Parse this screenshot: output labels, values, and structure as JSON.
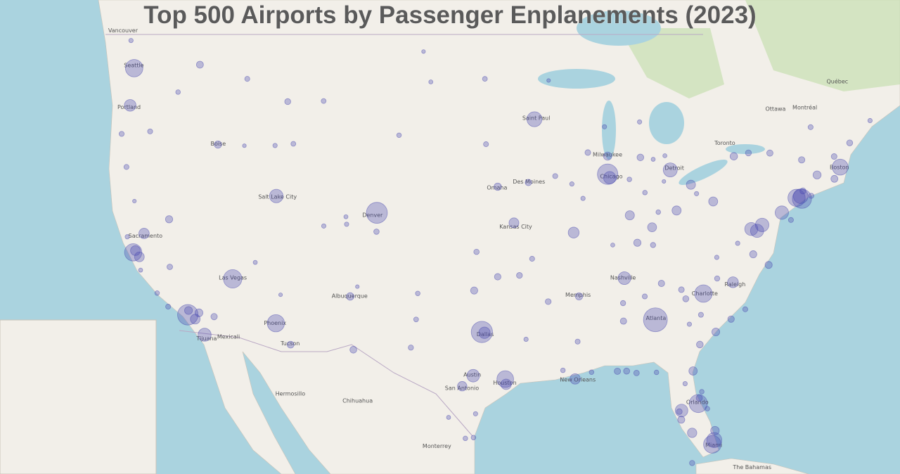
{
  "title": "Top 500 Airports by Passenger Enplanements (2023)",
  "map": {
    "type": "bubble-map",
    "bubble_color": "#4a4ab0",
    "points": [
      {
        "lon": -84.43,
        "lat": 33.64,
        "value": 50.9
      },
      {
        "lon": -97.04,
        "lat": 32.9,
        "value": 39.2
      },
      {
        "lon": -104.67,
        "lat": 39.86,
        "value": 37.9
      },
      {
        "lon": -87.9,
        "lat": 41.98,
        "value": 35.8
      },
      {
        "lon": -118.41,
        "lat": 33.94,
        "value": 36.0
      },
      {
        "lon": -73.78,
        "lat": 40.64,
        "value": 30.8
      },
      {
        "lon": -115.15,
        "lat": 36.08,
        "value": 28.0
      },
      {
        "lon": -81.31,
        "lat": 28.43,
        "value": 27.0
      },
      {
        "lon": -80.29,
        "lat": 25.79,
        "value": 25.2
      },
      {
        "lon": -80.94,
        "lat": 35.21,
        "value": 24.7
      },
      {
        "lon": -122.31,
        "lat": 47.45,
        "value": 24.7
      },
      {
        "lon": -112.01,
        "lat": 33.43,
        "value": 23.9
      },
      {
        "lon": -74.17,
        "lat": 40.69,
        "value": 24.0
      },
      {
        "lon": -122.38,
        "lat": 37.62,
        "value": 24.2
      },
      {
        "lon": -95.34,
        "lat": 29.98,
        "value": 22.1
      },
      {
        "lon": -71.0,
        "lat": 42.36,
        "value": 19.8
      },
      {
        "lon": -80.15,
        "lat": 26.07,
        "value": 17.4
      },
      {
        "lon": -93.22,
        "lat": 44.88,
        "value": 17.1
      },
      {
        "lon": -73.87,
        "lat": 40.78,
        "value": 16.2
      },
      {
        "lon": -83.35,
        "lat": 42.21,
        "value": 14.5
      },
      {
        "lon": -75.24,
        "lat": 39.87,
        "value": 12.9
      },
      {
        "lon": -111.98,
        "lat": 40.79,
        "value": 13.2
      },
      {
        "lon": -76.67,
        "lat": 39.18,
        "value": 13.1
      },
      {
        "lon": -77.04,
        "lat": 38.85,
        "value": 12.5
      },
      {
        "lon": -117.19,
        "lat": 32.73,
        "value": 12.0
      },
      {
        "lon": -77.46,
        "lat": 38.95,
        "value": 12.1
      },
      {
        "lon": -82.53,
        "lat": 27.98,
        "value": 11.1
      },
      {
        "lon": -86.68,
        "lat": 36.12,
        "value": 11.4
      },
      {
        "lon": -97.67,
        "lat": 30.19,
        "value": 10.9
      },
      {
        "lon": -87.75,
        "lat": 41.79,
        "value": 10.4
      },
      {
        "lon": -96.85,
        "lat": 32.85,
        "value": 8.5
      },
      {
        "lon": -122.6,
        "lat": 45.59,
        "value": 9.1
      },
      {
        "lon": -90.37,
        "lat": 38.75,
        "value": 7.5
      },
      {
        "lon": -78.79,
        "lat": 35.88,
        "value": 7.4
      },
      {
        "lon": -95.28,
        "lat": 29.65,
        "value": 6.8
      },
      {
        "lon": -121.59,
        "lat": 38.7,
        "value": 6.6
      },
      {
        "lon": -90.26,
        "lat": 29.99,
        "value": 6.7
      },
      {
        "lon": -121.93,
        "lat": 37.36,
        "value": 5.6
      },
      {
        "lon": -94.71,
        "lat": 39.3,
        "value": 5.7
      },
      {
        "lon": -122.22,
        "lat": 37.72,
        "value": 5.6
      },
      {
        "lon": -117.87,
        "lat": 33.68,
        "value": 5.6
      },
      {
        "lon": -98.47,
        "lat": 29.53,
        "value": 5.1
      },
      {
        "lon": -81.76,
        "lat": 26.54,
        "value": 5.0
      },
      {
        "lon": -81.85,
        "lat": 41.41,
        "value": 4.7
      },
      {
        "lon": -86.29,
        "lat": 39.72,
        "value": 4.7
      },
      {
        "lon": -80.23,
        "lat": 40.49,
        "value": 4.5
      },
      {
        "lon": -84.67,
        "lat": 39.05,
        "value": 4.4
      },
      {
        "lon": -82.89,
        "lat": 39.99,
        "value": 4.6
      },
      {
        "lon": -80.1,
        "lat": 26.68,
        "value": 3.9
      },
      {
        "lon": -81.69,
        "lat": 30.49,
        "value": 3.6
      },
      {
        "lon": -117.6,
        "lat": 34.06,
        "value": 3.0
      },
      {
        "lon": -118.36,
        "lat": 34.2,
        "value": 3.0
      },
      {
        "lon": -87.9,
        "lat": 42.95,
        "value": 3.4
      },
      {
        "lon": -72.68,
        "lat": 41.94,
        "value": 3.2
      },
      {
        "lon": -95.89,
        "lat": 41.3,
        "value": 2.4
      },
      {
        "lon": -106.61,
        "lat": 35.04,
        "value": 2.5
      },
      {
        "lon": -80.04,
        "lat": 32.9,
        "value": 2.9
      },
      {
        "lon": -116.22,
        "lat": 43.56,
        "value": 2.3
      },
      {
        "lon": -97.6,
        "lat": 35.39,
        "value": 2.2
      },
      {
        "lon": -89.98,
        "lat": 35.04,
        "value": 2.2
      },
      {
        "lon": -77.32,
        "lat": 37.51,
        "value": 2.2
      },
      {
        "lon": -85.74,
        "lat": 38.17,
        "value": 2.3
      },
      {
        "lon": -76.2,
        "lat": 36.89,
        "value": 2.2
      },
      {
        "lon": -110.94,
        "lat": 32.12,
        "value": 1.9
      },
      {
        "lon": -119.77,
        "lat": 39.5,
        "value": 2.3
      },
      {
        "lon": -117.53,
        "lat": 47.62,
        "value": 2.0
      },
      {
        "lon": -78.73,
        "lat": 42.94,
        "value": 2.5
      },
      {
        "lon": -106.38,
        "lat": 31.81,
        "value": 1.9
      },
      {
        "lon": -73.8,
        "lat": 42.75,
        "value": 1.5
      },
      {
        "lon": -81.2,
        "lat": 32.13,
        "value": 1.8
      },
      {
        "lon": -85.52,
        "lat": 42.88,
        "value": 1.8
      },
      {
        "lon": -93.66,
        "lat": 41.53,
        "value": 1.5
      },
      {
        "lon": -95.89,
        "lat": 36.2,
        "value": 1.6
      },
      {
        "lon": -78.93,
        "lat": 33.68,
        "value": 1.6
      },
      {
        "lon": -82.55,
        "lat": 27.39,
        "value": 2.1
      },
      {
        "lon": -71.42,
        "lat": 41.73,
        "value": 2.0
      },
      {
        "lon": -116.5,
        "lat": 33.83,
        "value": 1.5
      },
      {
        "lon": -111.15,
        "lat": 45.78,
        "value": 1.2
      },
      {
        "lon": -71.44,
        "lat": 42.93,
        "value": 1.0
      },
      {
        "lon": -92.22,
        "lat": 34.73,
        "value": 1.1
      },
      {
        "lon": -86.75,
        "lat": 33.56,
        "value": 1.5
      },
      {
        "lon": -87.19,
        "lat": 30.47,
        "value": 1.5
      },
      {
        "lon": -76.11,
        "lat": 43.11,
        "value": 1.4
      },
      {
        "lon": -77.67,
        "lat": 43.12,
        "value": 1.2
      },
      {
        "lon": -83.99,
        "lat": 35.81,
        "value": 1.5
      },
      {
        "lon": -82.22,
        "lat": 34.9,
        "value": 1.3
      },
      {
        "lon": -97.43,
        "lat": 37.65,
        "value": 0.8
      },
      {
        "lon": -119.72,
        "lat": 36.78,
        "value": 0.9
      },
      {
        "lon": -104.7,
        "lat": 38.8,
        "value": 0.8
      },
      {
        "lon": -102.2,
        "lat": 31.94,
        "value": 0.7
      },
      {
        "lon": -101.82,
        "lat": 33.66,
        "value": 0.5
      },
      {
        "lon": -101.7,
        "lat": 35.22,
        "value": 0.4
      },
      {
        "lon": -96.74,
        "lat": 43.58,
        "value": 0.6
      },
      {
        "lon": -96.82,
        "lat": 46.92,
        "value": 0.5
      },
      {
        "lon": -108.54,
        "lat": 45.81,
        "value": 0.5
      },
      {
        "lon": -103.06,
        "lat": 44.05,
        "value": 0.4
      },
      {
        "lon": -114.09,
        "lat": 46.92,
        "value": 0.6
      },
      {
        "lon": -110.74,
        "lat": 43.6,
        "value": 0.5
      },
      {
        "lon": -100.75,
        "lat": 46.77,
        "value": 0.2
      },
      {
        "lon": -101.28,
        "lat": 48.26,
        "value": 0.1
      },
      {
        "lon": -108.53,
        "lat": 39.12,
        "value": 0.3
      },
      {
        "lon": -85.8,
        "lat": 30.36,
        "value": 0.9
      },
      {
        "lon": -86.52,
        "lat": 30.48,
        "value": 1.3
      },
      {
        "lon": -93.83,
        "lat": 32.45,
        "value": 0.3
      },
      {
        "lon": -97.5,
        "lat": 27.77,
        "value": 0.3
      },
      {
        "lon": -97.65,
        "lat": 26.23,
        "value": 0.4
      },
      {
        "lon": -98.24,
        "lat": 26.18,
        "value": 0.4
      },
      {
        "lon": -99.46,
        "lat": 27.54,
        "value": 0.2
      },
      {
        "lon": -91.15,
        "lat": 30.53,
        "value": 0.4
      },
      {
        "lon": -89.07,
        "lat": 30.41,
        "value": 0.4
      },
      {
        "lon": -90.08,
        "lat": 32.31,
        "value": 0.6
      },
      {
        "lon": -86.78,
        "lat": 34.64,
        "value": 0.7
      },
      {
        "lon": -85.2,
        "lat": 35.04,
        "value": 0.6
      },
      {
        "lon": -84.6,
        "lat": 38.04,
        "value": 0.7
      },
      {
        "lon": -94.31,
        "lat": 36.28,
        "value": 1.1
      },
      {
        "lon": -93.39,
        "lat": 37.25,
        "value": 0.6
      },
      {
        "lon": -91.71,
        "lat": 41.88,
        "value": 0.6
      },
      {
        "lon": -90.5,
        "lat": 41.45,
        "value": 0.3
      },
      {
        "lon": -89.69,
        "lat": 40.66,
        "value": 0.3
      },
      {
        "lon": -89.34,
        "lat": 43.14,
        "value": 1.0
      },
      {
        "lon": -88.13,
        "lat": 44.49,
        "value": 0.3
      },
      {
        "lon": -92.19,
        "lat": 46.84,
        "value": 0.1
      },
      {
        "lon": -70.31,
        "lat": 43.65,
        "value": 1.2
      },
      {
        "lon": -73.15,
        "lat": 44.47,
        "value": 0.6
      },
      {
        "lon": -68.83,
        "lat": 44.81,
        "value": 0.3
      },
      {
        "lon": -74.58,
        "lat": 39.46,
        "value": 0.6
      },
      {
        "lon": -73.1,
        "lat": 40.8,
        "value": 0.7
      },
      {
        "lon": -73.71,
        "lat": 41.07,
        "value": 1.2
      },
      {
        "lon": -119.84,
        "lat": 34.43,
        "value": 0.6
      },
      {
        "lon": -120.64,
        "lat": 35.24,
        "value": 0.4
      },
      {
        "lon": -121.84,
        "lat": 36.59,
        "value": 0.2
      },
      {
        "lon": -122.81,
        "lat": 38.51,
        "value": 0.3
      },
      {
        "lon": -122.29,
        "lat": 40.51,
        "value": 0.1
      },
      {
        "lon": -122.87,
        "lat": 42.37,
        "value": 0.6
      },
      {
        "lon": -123.22,
        "lat": 44.12,
        "value": 0.6
      },
      {
        "lon": -121.15,
        "lat": 44.25,
        "value": 0.6
      },
      {
        "lon": -122.54,
        "lat": 48.79,
        "value": 0.3
      },
      {
        "lon": -119.12,
        "lat": 46.26,
        "value": 0.4
      },
      {
        "lon": -114.3,
        "lat": 43.5,
        "value": 0.1
      },
      {
        "lon": -112.07,
        "lat": 43.51,
        "value": 0.3
      },
      {
        "lon": -113.51,
        "lat": 37.04,
        "value": 0.2
      },
      {
        "lon": -111.67,
        "lat": 35.14,
        "value": 0.1
      },
      {
        "lon": -106.92,
        "lat": 39.64,
        "value": 0.2
      },
      {
        "lon": -106.87,
        "lat": 39.22,
        "value": 0.3
      },
      {
        "lon": -106.09,
        "lat": 35.62,
        "value": 0.1
      },
      {
        "lon": -78.45,
        "lat": 38.14,
        "value": 0.3
      },
      {
        "lon": -79.97,
        "lat": 37.33,
        "value": 0.3
      },
      {
        "lon": -79.94,
        "lat": 36.1,
        "value": 0.7
      },
      {
        "lon": -82.54,
        "lat": 35.44,
        "value": 1.0
      },
      {
        "lon": -77.9,
        "lat": 34.27,
        "value": 0.6
      },
      {
        "lon": -81.12,
        "lat": 33.94,
        "value": 0.6
      },
      {
        "lon": -81.96,
        "lat": 33.37,
        "value": 0.3
      },
      {
        "lon": -84.35,
        "lat": 30.4,
        "value": 0.4
      },
      {
        "lon": -82.27,
        "lat": 29.69,
        "value": 0.3
      },
      {
        "lon": -81.06,
        "lat": 29.18,
        "value": 0.4
      },
      {
        "lon": -80.65,
        "lat": 28.1,
        "value": 0.4
      },
      {
        "lon": -81.24,
        "lat": 28.78,
        "value": 1.4
      },
      {
        "lon": -81.76,
        "lat": 24.56,
        "value": 0.7
      },
      {
        "lon": -82.69,
        "lat": 27.91,
        "value": 1.0
      },
      {
        "lon": -81.44,
        "lat": 40.92,
        "value": 0.3
      },
      {
        "lon": -84.22,
        "lat": 39.9,
        "value": 0.4
      },
      {
        "lon": -83.81,
        "lat": 41.59,
        "value": 0.1
      },
      {
        "lon": -85.19,
        "lat": 40.98,
        "value": 0.4
      },
      {
        "lon": -86.32,
        "lat": 41.7,
        "value": 0.4
      },
      {
        "lon": -84.59,
        "lat": 42.78,
        "value": 0.2
      },
      {
        "lon": -83.74,
        "lat": 42.97,
        "value": 0.2
      },
      {
        "lon": -85.58,
        "lat": 44.74,
        "value": 0.3
      },
      {
        "lon": -87.53,
        "lat": 38.04,
        "value": 0.2
      }
    ],
    "labels": [
      {
        "text": "Seattle",
        "lon": -122.33,
        "lat": 47.61
      },
      {
        "text": "Portland",
        "lon": -122.68,
        "lat": 45.52
      },
      {
        "text": "Sacramento",
        "lon": -121.49,
        "lat": 38.58
      },
      {
        "text": "Las Vegas",
        "lon": -115.14,
        "lat": 36.17
      },
      {
        "text": "Salt Lake City",
        "lon": -111.89,
        "lat": 40.76
      },
      {
        "text": "Denver",
        "lon": -104.99,
        "lat": 39.74
      },
      {
        "text": "Phoenix",
        "lon": -112.07,
        "lat": 33.45
      },
      {
        "text": "Albuquerque",
        "lon": -106.65,
        "lat": 35.08
      },
      {
        "text": "Dallas",
        "lon": -96.8,
        "lat": 32.78
      },
      {
        "text": "Houston",
        "lon": -95.37,
        "lat": 29.76
      },
      {
        "text": "Austin",
        "lon": -97.74,
        "lat": 30.27
      },
      {
        "text": "San Antonio",
        "lon": -98.49,
        "lat": 29.42
      },
      {
        "text": "Kansas City",
        "lon": -94.58,
        "lat": 39.1
      },
      {
        "text": "Saint Paul",
        "lon": -93.09,
        "lat": 44.95
      },
      {
        "text": "Chicago",
        "lon": -87.63,
        "lat": 41.88
      },
      {
        "text": "Detroit",
        "lon": -83.05,
        "lat": 42.33
      },
      {
        "text": "Atlanta",
        "lon": -84.39,
        "lat": 33.75
      },
      {
        "text": "Nashville",
        "lon": -86.78,
        "lat": 36.16
      },
      {
        "text": "Charlotte",
        "lon": -80.84,
        "lat": 35.23
      },
      {
        "text": "Miami",
        "lon": -80.19,
        "lat": 25.76
      },
      {
        "text": "Orlando",
        "lon": -81.38,
        "lat": 28.54
      },
      {
        "text": "Boston",
        "lon": -71.06,
        "lat": 42.36
      },
      {
        "text": "Toronto",
        "lon": -79.38,
        "lat": 43.65
      },
      {
        "text": "Montréal",
        "lon": -73.57,
        "lat": 45.5
      },
      {
        "text": "Ottawa",
        "lon": -75.7,
        "lat": 45.42
      },
      {
        "text": "Québec",
        "lon": -71.21,
        "lat": 46.81
      },
      {
        "text": "Vancouver",
        "lon": -123.12,
        "lat": 49.28
      },
      {
        "text": "Boise",
        "lon": -116.2,
        "lat": 43.62
      },
      {
        "text": "Omaha",
        "lon": -95.94,
        "lat": 41.26
      },
      {
        "text": "Memphis",
        "lon": -90.05,
        "lat": 35.15
      },
      {
        "text": "New Orleans",
        "lon": -90.07,
        "lat": 29.95
      },
      {
        "text": "Tijuana",
        "lon": -117.04,
        "lat": 32.51
      },
      {
        "text": "Mexicali",
        "lon": -115.45,
        "lat": 32.62
      },
      {
        "text": "Hermosillo",
        "lon": -110.96,
        "lat": 29.07
      },
      {
        "text": "Chihuahua",
        "lon": -106.07,
        "lat": 28.63
      },
      {
        "text": "Monterrey",
        "lon": -100.31,
        "lat": 25.69
      },
      {
        "text": "Des Moines",
        "lon": -93.62,
        "lat": 41.59
      },
      {
        "text": "Milwaukee",
        "lon": -87.91,
        "lat": 43.04
      },
      {
        "text": "Raleigh",
        "lon": -78.64,
        "lat": 35.78
      },
      {
        "text": "Tucson",
        "lon": -110.97,
        "lat": 32.22
      },
      {
        "text": "The Bahamas",
        "lon": -77.4,
        "lat": 24.3
      }
    ]
  }
}
